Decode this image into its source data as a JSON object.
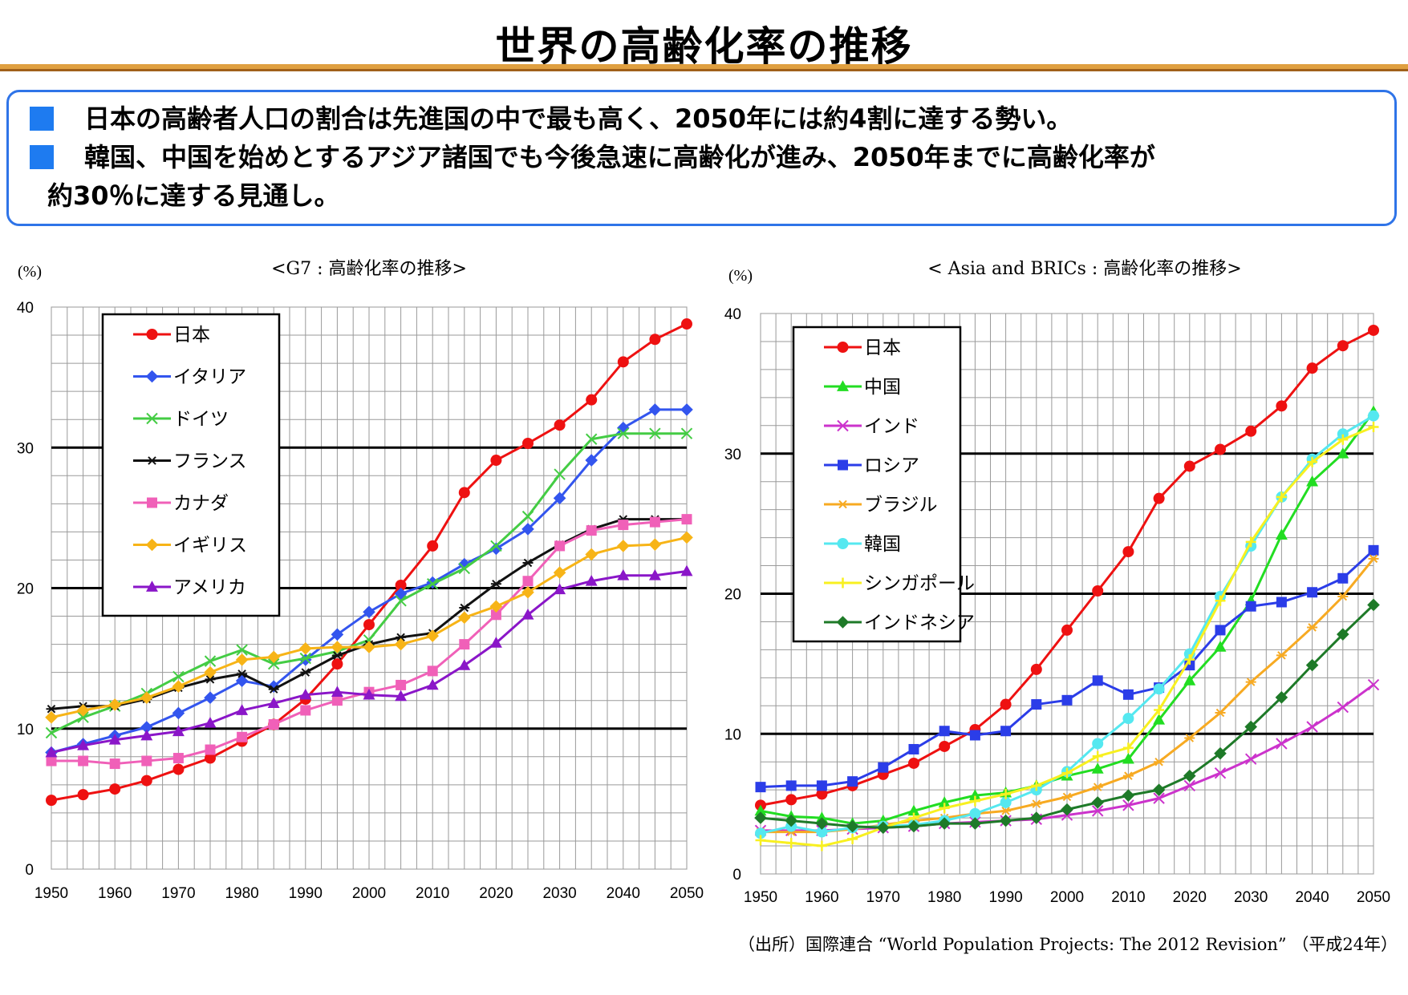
{
  "title": "世界の高齢化率の推移",
  "summary": {
    "bullet1": "日本の高齢者人口の割合は先進国の中で最も高く、2050年には約4割に達する勢い。",
    "bullet2_line1": "韓国、中国を始めとするアジア諸国でも今後急速に高齢化が進み、2050年までに高齢化率が",
    "bullet2_line2": "約30％に達する見通し。"
  },
  "source": "（出所）国際連合 “World Population Projects: The 2012 Revision” （平成24年）",
  "chart_data": [
    {
      "type": "line",
      "title": "<G7 : 高齢化率の推移>",
      "ylabel": "(%)",
      "ylim": [
        0,
        40
      ],
      "yticks": [
        0,
        10,
        20,
        30,
        40
      ],
      "x": [
        1950,
        1955,
        1960,
        1965,
        1970,
        1975,
        1980,
        1985,
        1990,
        1995,
        2000,
        2005,
        2010,
        2015,
        2020,
        2025,
        2030,
        2035,
        2040,
        2045,
        2050
      ],
      "xticks": [
        1950,
        1960,
        1970,
        1980,
        1990,
        2000,
        2010,
        2020,
        2030,
        2040,
        2050
      ],
      "grid": true,
      "legend_position": "top-left",
      "series": [
        {
          "name": "日本",
          "color": "#ee1111",
          "marker": "circle",
          "values": [
            4.9,
            5.3,
            5.7,
            6.3,
            7.1,
            7.9,
            9.1,
            10.3,
            12.1,
            14.6,
            17.4,
            20.2,
            23.0,
            26.8,
            29.1,
            30.3,
            31.6,
            33.4,
            36.1,
            37.7,
            38.8
          ]
        },
        {
          "name": "イタリア",
          "color": "#3355ee",
          "marker": "diamond",
          "values": [
            8.3,
            8.9,
            9.5,
            10.1,
            11.1,
            12.2,
            13.4,
            13.0,
            14.9,
            16.7,
            18.3,
            19.6,
            20.4,
            21.7,
            22.8,
            24.2,
            26.4,
            29.1,
            31.4,
            32.7,
            32.7
          ]
        },
        {
          "name": "ドイツ",
          "color": "#44cc44",
          "marker": "x",
          "values": [
            9.7,
            10.8,
            11.6,
            12.5,
            13.7,
            14.8,
            15.6,
            14.6,
            15.0,
            15.5,
            16.3,
            19.1,
            20.3,
            21.4,
            23.0,
            25.1,
            28.1,
            30.6,
            31.0,
            31.0,
            31.0
          ]
        },
        {
          "name": "フランス",
          "color": "#111111",
          "marker": "star",
          "values": [
            11.4,
            11.6,
            11.6,
            12.1,
            12.9,
            13.5,
            13.9,
            12.8,
            14.0,
            15.2,
            16.0,
            16.5,
            16.8,
            18.6,
            20.3,
            21.8,
            23.1,
            24.2,
            24.9,
            24.9,
            24.9
          ]
        },
        {
          "name": "カナダ",
          "color": "#f060b8",
          "marker": "square",
          "values": [
            7.7,
            7.7,
            7.5,
            7.7,
            7.9,
            8.5,
            9.4,
            10.3,
            11.3,
            12.0,
            12.6,
            13.1,
            14.1,
            16.0,
            18.1,
            20.5,
            23.0,
            24.1,
            24.5,
            24.7,
            24.9
          ]
        },
        {
          "name": "イギリス",
          "color": "#f7b417",
          "marker": "diamond",
          "values": [
            10.8,
            11.3,
            11.7,
            12.2,
            13.0,
            14.0,
            14.9,
            15.1,
            15.7,
            15.8,
            15.8,
            16.0,
            16.6,
            17.9,
            18.7,
            19.7,
            21.1,
            22.4,
            23.0,
            23.1,
            23.6
          ]
        },
        {
          "name": "アメリカ",
          "color": "#8a16c8",
          "marker": "triangle",
          "values": [
            8.3,
            8.8,
            9.2,
            9.5,
            9.8,
            10.4,
            11.3,
            11.8,
            12.4,
            12.6,
            12.4,
            12.3,
            13.1,
            14.5,
            16.1,
            18.1,
            19.9,
            20.5,
            20.9,
            20.9,
            21.2
          ]
        }
      ]
    },
    {
      "type": "line",
      "title": "< Asia and BRICs : 高齢化率の推移>",
      "ylabel": "(%)",
      "ylim": [
        0,
        40
      ],
      "yticks": [
        0,
        10,
        20,
        30,
        40
      ],
      "x": [
        1950,
        1955,
        1960,
        1965,
        1970,
        1975,
        1980,
        1985,
        1990,
        1995,
        2000,
        2005,
        2010,
        2015,
        2020,
        2025,
        2030,
        2035,
        2040,
        2045,
        2050
      ],
      "xticks": [
        1950,
        1960,
        1970,
        1980,
        1990,
        2000,
        2010,
        2020,
        2030,
        2040,
        2050
      ],
      "grid": true,
      "legend_position": "top-left",
      "series": [
        {
          "name": "日本",
          "color": "#ee1111",
          "marker": "circle",
          "values": [
            4.9,
            5.3,
            5.7,
            6.3,
            7.1,
            7.9,
            9.1,
            10.3,
            12.1,
            14.6,
            17.4,
            20.2,
            23.0,
            26.8,
            29.1,
            30.3,
            31.6,
            33.4,
            36.1,
            37.7,
            38.8
          ]
        },
        {
          "name": "中国",
          "color": "#22dd22",
          "marker": "triangle",
          "values": [
            4.5,
            4.1,
            4.0,
            3.6,
            3.8,
            4.5,
            5.1,
            5.6,
            5.8,
            6.3,
            7.0,
            7.5,
            8.2,
            11.0,
            13.8,
            16.2,
            19.5,
            24.2,
            28.0,
            30.0,
            33.0
          ]
        },
        {
          "name": "インド",
          "color": "#cc33cc",
          "marker": "x",
          "values": [
            3.1,
            3.1,
            3.1,
            3.2,
            3.3,
            3.4,
            3.6,
            3.7,
            3.8,
            3.9,
            4.2,
            4.5,
            4.9,
            5.4,
            6.3,
            7.2,
            8.2,
            9.3,
            10.5,
            11.9,
            13.5
          ]
        },
        {
          "name": "ロシア",
          "color": "#2b3de8",
          "marker": "square",
          "values": [
            6.2,
            6.3,
            6.3,
            6.6,
            7.6,
            8.9,
            10.2,
            9.9,
            10.2,
            12.1,
            12.4,
            13.8,
            12.8,
            13.3,
            14.9,
            17.4,
            19.1,
            19.4,
            20.1,
            21.1,
            23.1
          ]
        },
        {
          "name": "ブラジル",
          "color": "#f7aa22",
          "marker": "star",
          "values": [
            3.0,
            3.0,
            3.0,
            3.2,
            3.5,
            3.8,
            4.0,
            4.3,
            4.5,
            5.0,
            5.5,
            6.2,
            7.0,
            8.0,
            9.7,
            11.5,
            13.7,
            15.6,
            17.6,
            19.8,
            22.5
          ]
        },
        {
          "name": "韓国",
          "color": "#55e8f0",
          "marker": "circle",
          "values": [
            2.9,
            3.4,
            3.0,
            3.3,
            3.4,
            3.5,
            3.8,
            4.3,
            5.1,
            6.0,
            7.3,
            9.3,
            11.1,
            13.2,
            15.7,
            19.8,
            23.4,
            26.9,
            29.6,
            31.4,
            32.7
          ]
        },
        {
          "name": "シンガポール",
          "color": "#f8f020",
          "marker": "plus",
          "values": [
            2.4,
            2.2,
            2.0,
            2.5,
            3.3,
            4.0,
            4.7,
            5.2,
            5.7,
            6.3,
            7.2,
            8.4,
            9.0,
            11.7,
            15.3,
            19.5,
            23.7,
            26.9,
            29.4,
            31.0,
            31.9
          ]
        },
        {
          "name": "インドネシア",
          "color": "#1e7a28",
          "marker": "diamond",
          "values": [
            4.0,
            3.8,
            3.6,
            3.4,
            3.3,
            3.4,
            3.6,
            3.6,
            3.8,
            4.0,
            4.6,
            5.1,
            5.6,
            6.0,
            7.0,
            8.6,
            10.5,
            12.6,
            14.9,
            17.1,
            19.2
          ]
        }
      ]
    }
  ]
}
